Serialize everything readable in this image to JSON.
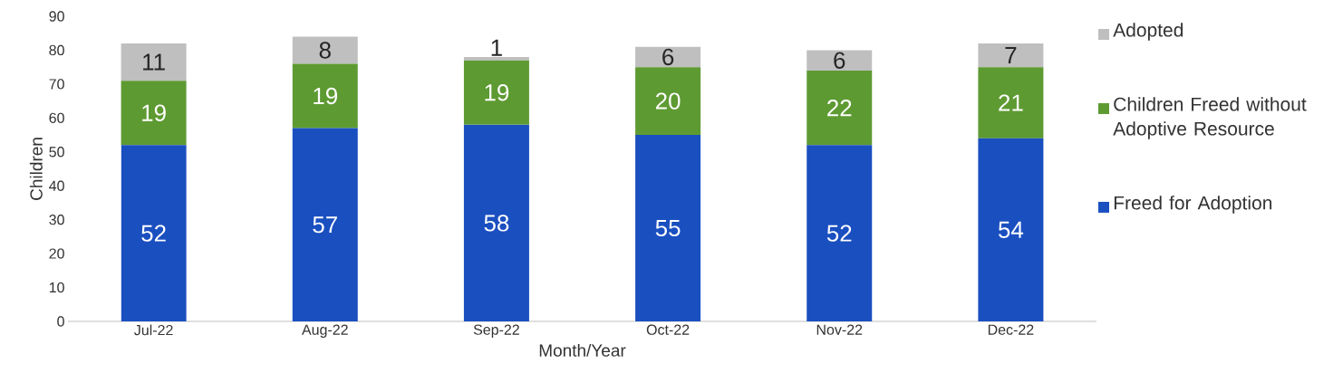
{
  "chart_data": {
    "type": "bar",
    "stacked": true,
    "xlabel": "Month/Year",
    "ylabel": "Children",
    "categories": [
      "Jul-22",
      "Aug-22",
      "Sep-22",
      "Oct-22",
      "Nov-22",
      "Dec-22"
    ],
    "series": [
      {
        "name": "Freed for Adoption",
        "color": "#1a4fc0",
        "values": [
          52,
          57,
          58,
          55,
          52,
          54
        ]
      },
      {
        "name": "Children Freed without Adoptive Resource",
        "color": "#5e9a32",
        "values": [
          19,
          19,
          19,
          20,
          22,
          21
        ]
      },
      {
        "name": "Adopted",
        "color": "#bfbfbf",
        "values": [
          11,
          8,
          1,
          6,
          6,
          7
        ]
      }
    ],
    "ylim": [
      0,
      90
    ],
    "yticks": [
      0,
      10,
      20,
      30,
      40,
      50,
      60,
      70,
      80,
      90
    ],
    "data_labels": true,
    "legend": "right"
  }
}
